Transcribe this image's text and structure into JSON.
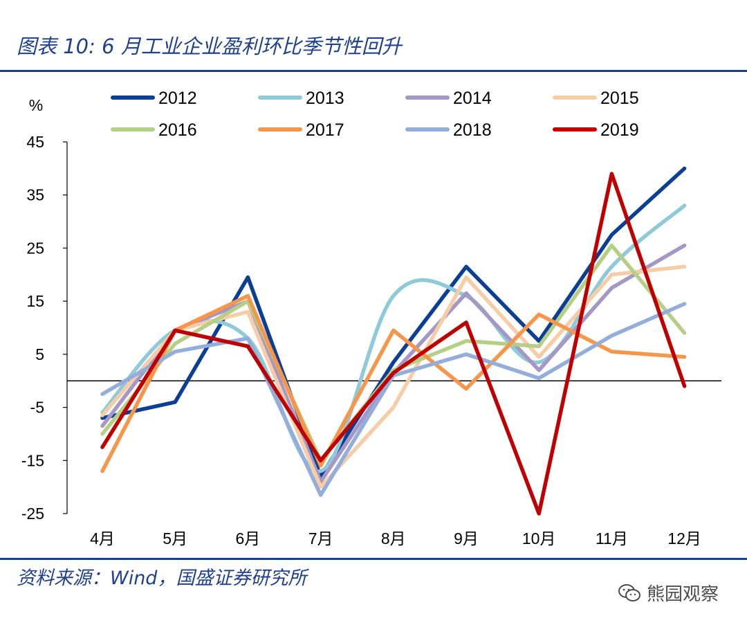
{
  "header": {
    "title": "图表 10: 6 月工业企业盈利环比季节性回升"
  },
  "footer": {
    "source": "资料来源：Wind，国盛证券研究所",
    "watermark": "熊园观察",
    "watermark_icon": "wechat-icon"
  },
  "chart_data": {
    "type": "line",
    "title": "6月工业企业盈利环比季节性回升",
    "ylabel": "%",
    "xlabel": "",
    "ylim": [
      -25,
      45
    ],
    "yticks": [
      45,
      35,
      25,
      15,
      5,
      -5,
      -15,
      -25
    ],
    "categories": [
      "4月",
      "5月",
      "6月",
      "7月",
      "8月",
      "9月",
      "10月",
      "11月",
      "12月"
    ],
    "legend_position": "top",
    "series": [
      {
        "name": "2012",
        "color": "#0b3f96",
        "values": [
          -7,
          -4,
          19.5,
          -18,
          3.5,
          21.5,
          7.5,
          27.5,
          40
        ]
      },
      {
        "name": "2013",
        "color": "#8ecad8",
        "values": [
          -6,
          9.5,
          8,
          -17,
          16,
          16,
          3.5,
          21.5,
          33
        ],
        "smooth": true
      },
      {
        "name": "2014",
        "color": "#a597c6",
        "values": [
          -8.5,
          9.5,
          15,
          -19,
          1.5,
          16.5,
          2,
          17.5,
          25.5
        ]
      },
      {
        "name": "2015",
        "color": "#f7cda8",
        "values": [
          -6.5,
          9.5,
          13,
          -20,
          -5,
          19.5,
          4.5,
          20,
          21.5
        ]
      },
      {
        "name": "2016",
        "color": "#b5cf86",
        "values": [
          -10,
          7,
          15,
          -15,
          2,
          7.5,
          6.5,
          25.5,
          9
        ]
      },
      {
        "name": "2017",
        "color": "#f79548",
        "values": [
          -17,
          9.5,
          16,
          -16,
          9.5,
          -1.5,
          12.5,
          5.5,
          4.5
        ]
      },
      {
        "name": "2018",
        "color": "#93aedb",
        "values": [
          -2.5,
          5.5,
          8,
          -21.5,
          1,
          5,
          0.5,
          8.5,
          14.5
        ]
      },
      {
        "name": "2019",
        "color": "#c00000",
        "values": [
          -12.5,
          9.5,
          6.5,
          -15,
          1.5,
          11,
          -25,
          39,
          -1
        ]
      }
    ]
  }
}
